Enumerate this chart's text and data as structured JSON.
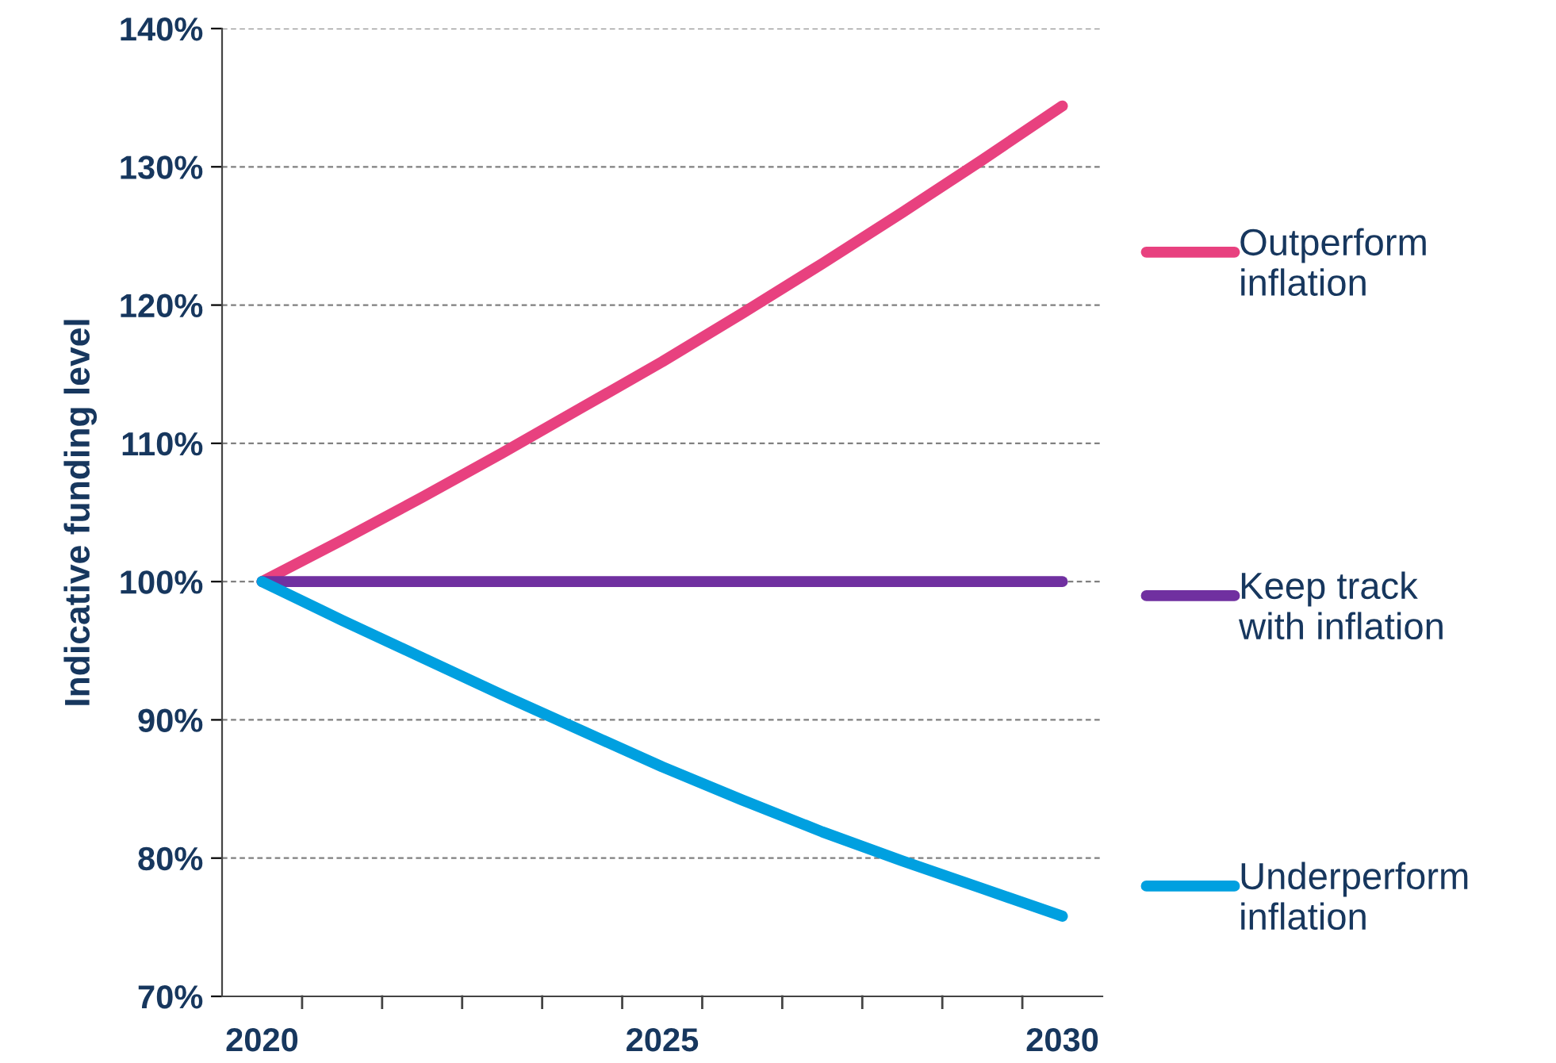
{
  "chart_data": {
    "type": "line",
    "ylabel": "Indicative funding level",
    "x": [
      2020,
      2021,
      2022,
      2023,
      2024,
      2025,
      2026,
      2027,
      2028,
      2029,
      2030
    ],
    "series": [
      {
        "name": "Outperform\ninflation",
        "color": "#e8417f",
        "values": [
          100,
          103,
          106.1,
          109.3,
          112.6,
          115.9,
          119.4,
          123,
          126.7,
          130.5,
          134.4
        ]
      },
      {
        "name": "Keep track\nwith inflation",
        "color": "#7030a0",
        "values": [
          100,
          100,
          100,
          100,
          100,
          100,
          100,
          100,
          100,
          100,
          100
        ]
      },
      {
        "name": "Underperform\ninflation",
        "color": "#00a0e0",
        "values": [
          100,
          97.2,
          94.5,
          91.8,
          89.2,
          86.6,
          84.2,
          81.9,
          79.8,
          77.8,
          75.8
        ]
      }
    ],
    "xlim": [
      2019.5,
      2030.5
    ],
    "xticks": [
      {
        "value": 2020,
        "label": "2020"
      },
      {
        "value": 2025,
        "label": "2025"
      },
      {
        "value": 2030,
        "label": "2030"
      }
    ],
    "yticks": [
      {
        "value": 70,
        "label": "70%"
      },
      {
        "value": 80,
        "label": "80%"
      },
      {
        "value": 90,
        "label": "90%"
      },
      {
        "value": 100,
        "label": "100%"
      },
      {
        "value": 110,
        "label": "110%"
      },
      {
        "value": 120,
        "label": "120%"
      },
      {
        "value": 130,
        "label": "130%"
      },
      {
        "value": 140,
        "label": "140%"
      }
    ],
    "ylim": [
      70,
      140
    ],
    "grid": "y",
    "legend": "right",
    "marker": "none",
    "line_style": "solid"
  }
}
